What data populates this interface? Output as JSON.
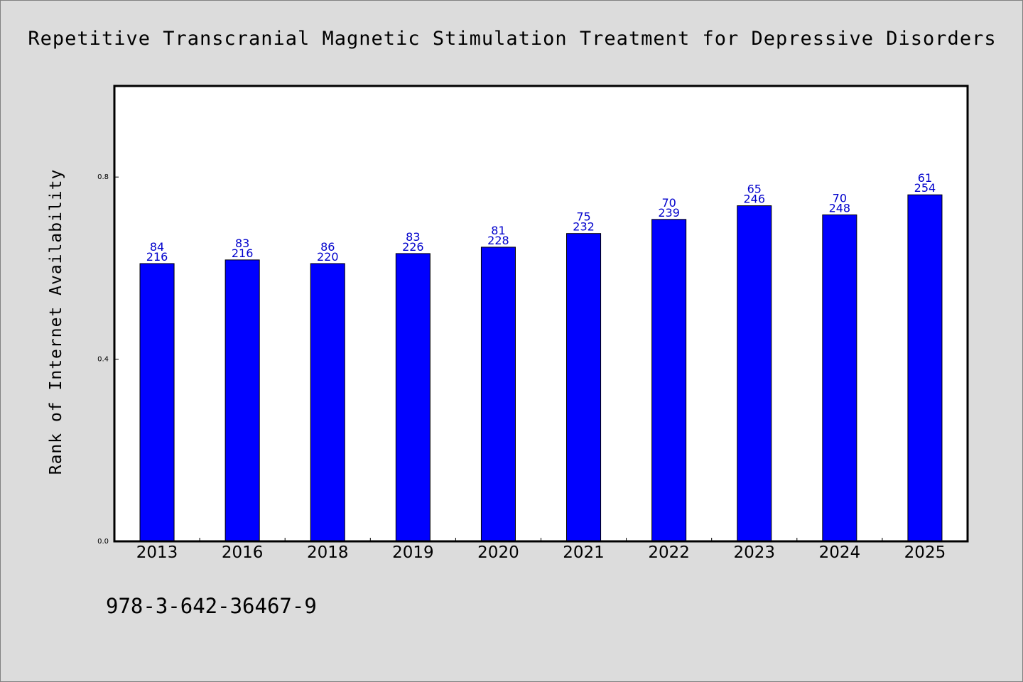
{
  "chart_data": {
    "type": "bar",
    "title": "Repetitive Transcranial Magnetic Stimulation Treatment for Depressive Disorders",
    "xlabel": "",
    "ylabel": "Rank of Internet Availability",
    "categories": [
      "2013",
      "2016",
      "2018",
      "2019",
      "2020",
      "2021",
      "2022",
      "2023",
      "2024",
      "2025"
    ],
    "values": [
      0.61,
      0.618,
      0.61,
      0.632,
      0.646,
      0.676,
      0.707,
      0.737,
      0.717,
      0.761
    ],
    "label_top": [
      "84",
      "83",
      "86",
      "83",
      "81",
      "75",
      "70",
      "65",
      "70",
      "61"
    ],
    "label_bottom": [
      "216",
      "216",
      "220",
      "226",
      "228",
      "232",
      "239",
      "246",
      "248",
      "254"
    ],
    "ylim": [
      0,
      1.0
    ],
    "yticks": [
      0.0,
      0.4,
      0.8
    ],
    "ytick_labels": [
      "0.0",
      "0.4",
      "0.8"
    ],
    "grid": false,
    "legend": "none",
    "bar_color": "#0000ff",
    "label_color": "#0000cc",
    "background_color": "#dcdcdc",
    "plot_background_color": "#ffffff"
  },
  "footer": {
    "isbn": "978-3-642-36467-9"
  }
}
